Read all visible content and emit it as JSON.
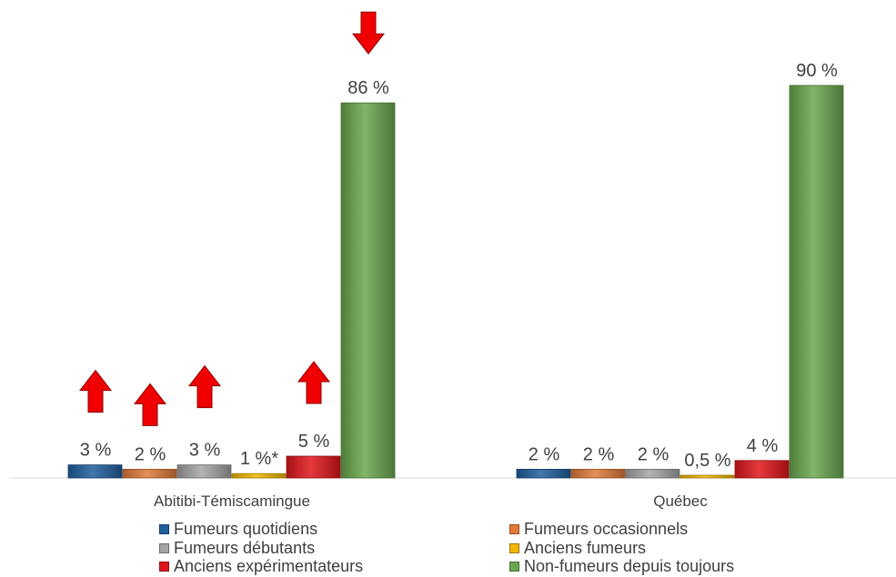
{
  "chart_data": {
    "type": "bar",
    "categories": [
      "Abitibi-Témiscamingue",
      "Québec"
    ],
    "ylim": [
      0,
      100
    ],
    "grid": false,
    "legend_position": "bottom",
    "series": [
      {
        "name": "Fumeurs quotidiens",
        "color": "#1f5f9e",
        "values": [
          3,
          2
        ],
        "labels": [
          "3 %",
          "2 %"
        ],
        "arrows": [
          "up",
          null
        ]
      },
      {
        "name": "Fumeurs occasionnels",
        "color": "#e07b39",
        "values": [
          2,
          2
        ],
        "labels": [
          "2 %",
          "2 %"
        ],
        "arrows": [
          "up",
          null
        ]
      },
      {
        "name": "Fumeurs débutants",
        "color": "#a5a5a5",
        "values": [
          3,
          2
        ],
        "labels": [
          "3 %",
          "2 %"
        ],
        "arrows": [
          "up",
          null
        ]
      },
      {
        "name": "Anciens fumeurs",
        "color": "#f2b800",
        "values": [
          1,
          0.5
        ],
        "labels": [
          "1 %*",
          "0,5 %"
        ],
        "arrows": [
          null,
          null
        ]
      },
      {
        "name": "Anciens expérimentateurs",
        "color": "#e0161b",
        "values": [
          5,
          4
        ],
        "labels": [
          "5 %",
          "4 %"
        ],
        "arrows": [
          "up",
          null
        ]
      },
      {
        "name": "Non-fumeurs depuis toujours",
        "color": "#6aa84f",
        "values": [
          86,
          90
        ],
        "labels": [
          "86 %",
          "90 %"
        ],
        "arrows": [
          "down",
          null
        ]
      }
    ]
  }
}
